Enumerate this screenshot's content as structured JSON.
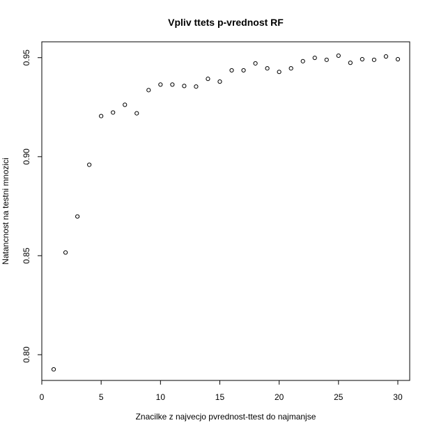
{
  "chart_data": {
    "type": "scatter",
    "title": "Vpliv ttets p-vrednost RF",
    "xlabel": "Znacilke z najvecjo pvrednost-ttest do najmanjse",
    "ylabel": "Natancnost na testni mnozici",
    "xlim": [
      0.0,
      31.0
    ],
    "ylim": [
      0.787,
      0.958
    ],
    "x_ticks": [
      0,
      5,
      10,
      15,
      20,
      25,
      30
    ],
    "y_ticks": [
      0.8,
      0.85,
      0.9,
      0.95
    ],
    "x_tick_labels": [
      "0",
      "5",
      "10",
      "15",
      "20",
      "25",
      "30"
    ],
    "y_tick_labels": [
      "0.80",
      "0.85",
      "0.90",
      "0.95"
    ],
    "grid": false,
    "legend": "none",
    "marker": "open-circle",
    "colors": {
      "points": "#000000",
      "axes": "#000000",
      "background": "#ffffff"
    },
    "points": [
      {
        "x": 1,
        "y": 0.7926
      },
      {
        "x": 2,
        "y": 0.8516
      },
      {
        "x": 3,
        "y": 0.8698
      },
      {
        "x": 4,
        "y": 0.8959
      },
      {
        "x": 5,
        "y": 0.9205
      },
      {
        "x": 6,
        "y": 0.9223
      },
      {
        "x": 7,
        "y": 0.9262
      },
      {
        "x": 8,
        "y": 0.9219
      },
      {
        "x": 9,
        "y": 0.9336
      },
      {
        "x": 10,
        "y": 0.9364
      },
      {
        "x": 11,
        "y": 0.9364
      },
      {
        "x": 12,
        "y": 0.9357
      },
      {
        "x": 13,
        "y": 0.9354
      },
      {
        "x": 14,
        "y": 0.9393
      },
      {
        "x": 15,
        "y": 0.9379
      },
      {
        "x": 16,
        "y": 0.9436
      },
      {
        "x": 17,
        "y": 0.9436
      },
      {
        "x": 18,
        "y": 0.9471
      },
      {
        "x": 19,
        "y": 0.9446
      },
      {
        "x": 20,
        "y": 0.9428
      },
      {
        "x": 21,
        "y": 0.9446
      },
      {
        "x": 22,
        "y": 0.9482
      },
      {
        "x": 23,
        "y": 0.9499
      },
      {
        "x": 24,
        "y": 0.9489
      },
      {
        "x": 25,
        "y": 0.951
      },
      {
        "x": 26,
        "y": 0.9474
      },
      {
        "x": 27,
        "y": 0.9492
      },
      {
        "x": 28,
        "y": 0.9489
      },
      {
        "x": 29,
        "y": 0.9506
      },
      {
        "x": 30,
        "y": 0.9492
      }
    ]
  }
}
